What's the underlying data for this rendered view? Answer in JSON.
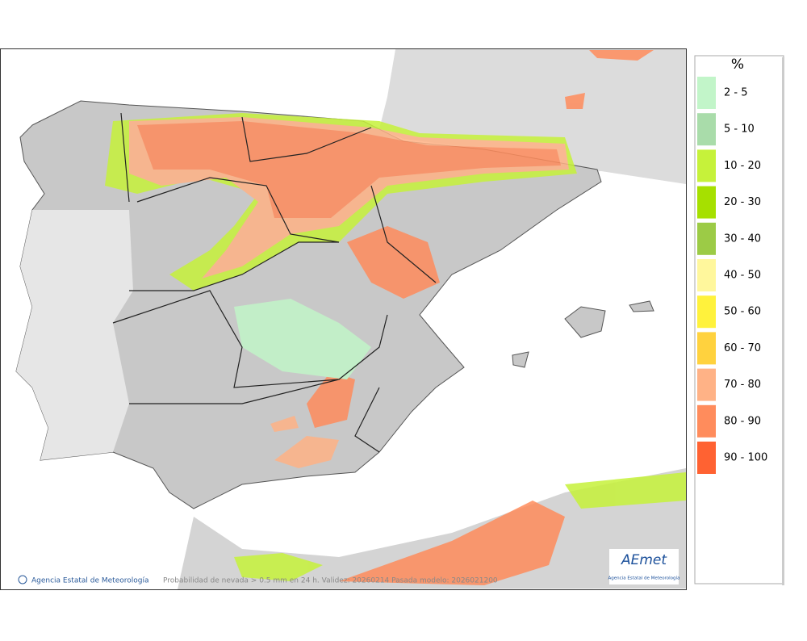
{
  "legend": {
    "title": "%",
    "items": [
      {
        "label": "2 - 5",
        "color": "#c2f5c9"
      },
      {
        "label": "5 - 10",
        "color": "#a9dcaa"
      },
      {
        "label": "10 - 20",
        "color": "#c6f23a"
      },
      {
        "label": "20 - 30",
        "color": "#a6e000"
      },
      {
        "label": "30 - 40",
        "color": "#9ccb46"
      },
      {
        "label": "40 - 50",
        "color": "#fff79c"
      },
      {
        "label": "50 - 60",
        "color": "#fff23c"
      },
      {
        "label": "60 - 70",
        "color": "#ffd23e"
      },
      {
        "label": "70 - 80",
        "color": "#ffb286"
      },
      {
        "label": "80 - 90",
        "color": "#ff8c5c"
      },
      {
        "label": "90 - 100",
        "color": "#ff6232"
      }
    ]
  },
  "footer": {
    "credit": "Agencia Estatal de Meteorología",
    "caption": "Probabilidad de nevada > 0.5 mm en 24 h. Validez: 20260214 Pasada modelo: 2026021200"
  },
  "logo": {
    "name": "AEmet",
    "subtitle": "Agencia Estatal de Meteorología"
  }
}
